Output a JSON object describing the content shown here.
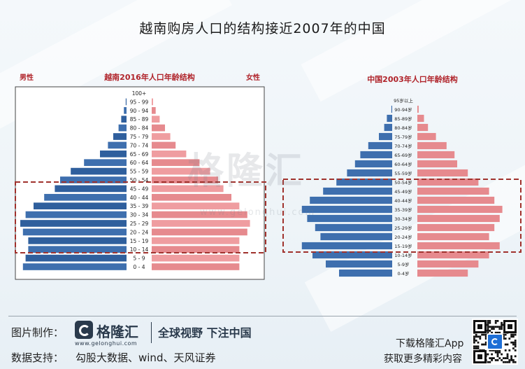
{
  "title": "越南购房人口的结构接近2007年的中国",
  "watermark": {
    "name": "格隆汇",
    "url": "www.gelonghui.com"
  },
  "footer": {
    "made_by_label": "图片制作：",
    "logo_name": "格隆汇",
    "logo_sub": "www.gelonghui.com",
    "slogan": "全球视野 下注中国",
    "data_source_label": "数据支持：",
    "data_source": "勾股大数据、wind、天风证券",
    "app_line1": "下载格隆汇App",
    "app_line2": "获取更多精彩内容"
  },
  "colors": {
    "male": "#3e6fae",
    "female": "#e68a8e",
    "highlight_box": "#a0322d"
  },
  "chart_data": [
    {
      "type": "bar",
      "orientation": "horizontal-pyramid",
      "title": "越南2016年人口年龄结构",
      "left_label": "男性",
      "right_label": "女性",
      "categories": [
        "100+",
        "95 - 99",
        "90 - 94",
        "85 - 89",
        "80 - 84",
        "75 - 79",
        "70 - 74",
        "65 - 69",
        "60 - 64",
        "55 - 59",
        "50 - 54",
        "45 - 49",
        "40 - 44",
        "35 - 39",
        "30 - 34",
        "25 - 29",
        "20 - 24",
        "15 - 19",
        "10 - 14",
        "5 - 9",
        "0 - 4"
      ],
      "series": [
        {
          "values": [
            0,
            0.3,
            1,
            2,
            3,
            5,
            7,
            10,
            16,
            21,
            25,
            27,
            31,
            35,
            38,
            40,
            39,
            37,
            37,
            38,
            39
          ]
        },
        {
          "values": [
            0,
            0.5,
            1.5,
            3,
            5,
            7,
            9,
            13,
            18,
            22,
            25,
            27,
            30,
            33,
            36,
            37,
            36,
            33,
            33,
            33,
            33
          ]
        }
      ],
      "highlight_rows": [
        "15 - 19",
        "55 - 59"
      ],
      "grid": false
    },
    {
      "type": "bar",
      "orientation": "horizontal-pyramid",
      "title": "中国2003年人口年龄结构",
      "categories": [
        "95岁以上",
        "90-94岁",
        "85-89岁",
        "80-84岁",
        "75-79岁",
        "70-74岁",
        "65-69岁",
        "60-64岁",
        "55-59岁",
        "50-54岁",
        "45-49岁",
        "40-44岁",
        "35-39岁",
        "30-34岁",
        "25-29岁",
        "20-24岁",
        "15-19岁",
        "10-14岁",
        "5-9岁",
        "0-4岁"
      ],
      "series": [
        {
          "values": [
            0,
            0.3,
            2,
            3,
            5,
            9,
            12,
            14,
            17,
            21,
            26,
            31,
            34,
            32,
            29,
            27,
            34,
            30,
            25,
            20
          ]
        },
        {
          "values": [
            0,
            0.5,
            2.5,
            4,
            7,
            11,
            14,
            15,
            19,
            23,
            27,
            29,
            32,
            31,
            29,
            27,
            31,
            27,
            23,
            19
          ]
        }
      ],
      "highlight_rows": [
        "15-19岁",
        "55-59岁"
      ],
      "grid": false
    }
  ]
}
